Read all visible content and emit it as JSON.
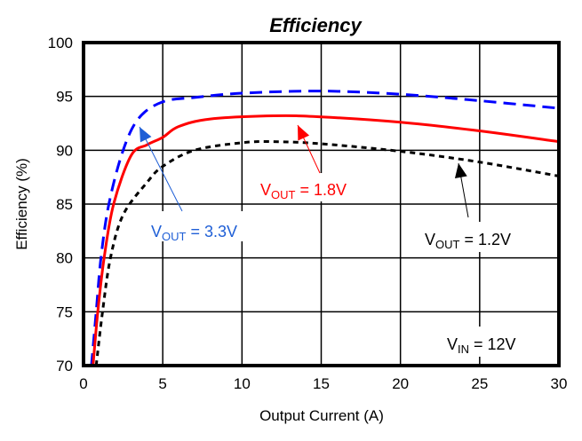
{
  "chart_data": {
    "type": "line",
    "title": "Efficiency",
    "xlabel": "Output Current (A)",
    "ylabel": "Efficiency (%)",
    "xlim": [
      0,
      30
    ],
    "ylim": [
      70,
      100
    ],
    "xticks": [
      "0",
      "5",
      "10",
      "15",
      "20",
      "25",
      "30"
    ],
    "yticks": [
      "70",
      "75",
      "80",
      "85",
      "90",
      "95",
      "100"
    ],
    "grid": true,
    "series": [
      {
        "name": "VOUT = 3.3V",
        "color": "#0000ff",
        "style": "dashed",
        "x": [
          0.5,
          0.8,
          1.1,
          1.6,
          2.5,
          3.5,
          5,
          7,
          10,
          15,
          20,
          25,
          30
        ],
        "y": [
          70,
          75,
          80,
          85,
          90,
          93,
          94.5,
          94.9,
          95.3,
          95.5,
          95.2,
          94.6,
          93.9
        ]
      },
      {
        "name": "VOUT = 1.8V",
        "color": "#ff0000",
        "style": "solid",
        "x": [
          0.6,
          0.9,
          1.3,
          1.9,
          3,
          4,
          5,
          6,
          8,
          12,
          15,
          20,
          25,
          30
        ],
        "y": [
          70,
          75,
          80,
          85,
          89.5,
          90.5,
          91.2,
          92.2,
          92.9,
          93.2,
          93.1,
          92.6,
          91.8,
          90.8
        ]
      },
      {
        "name": "VOUT = 1.2V",
        "color": "#000000",
        "style": "dotted",
        "x": [
          0.8,
          1.2,
          1.7,
          2.5,
          4,
          5,
          7,
          10,
          12,
          15,
          20,
          25,
          30
        ],
        "y": [
          70,
          75,
          80,
          84,
          87,
          88.5,
          90,
          90.7,
          90.8,
          90.6,
          89.9,
          88.9,
          87.6
        ]
      }
    ],
    "annotations": [
      {
        "base": "V",
        "sub": "OUT",
        "rest": " = 3.3V",
        "color": "#1f5fd6"
      },
      {
        "base": "V",
        "sub": "OUT",
        "rest": " = 1.8V",
        "color": "#ff0000"
      },
      {
        "base": "V",
        "sub": "OUT",
        "rest": " = 1.2V",
        "color": "#000000"
      },
      {
        "base": "V",
        "sub": "IN",
        "rest": " = 12V",
        "color": "#000000"
      }
    ]
  }
}
